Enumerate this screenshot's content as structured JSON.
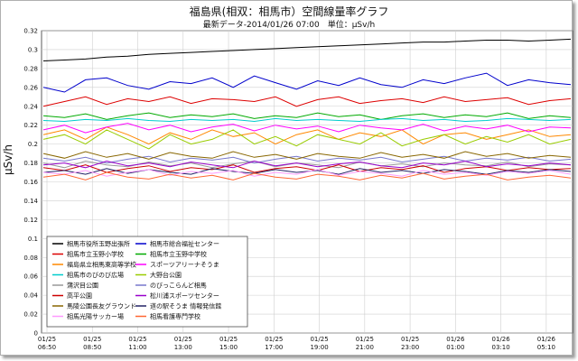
{
  "chart_data": {
    "type": "line",
    "title": "福島県(相双：相馬市）空間線量率グラフ",
    "subtitle": "最新データ-2014/01/26 07:00　単位：μSv/h",
    "ylabel": "μSv/h",
    "ylim": [
      0,
      0.32
    ],
    "yticks": [
      "0",
      "0.02",
      "0.04",
      "0.06",
      "0.08",
      "0.1",
      "0.12",
      "0.14",
      "0.16",
      "0.18",
      "0.2",
      "0.22",
      "0.24",
      "0.26",
      "0.28",
      "0.3",
      "0.32"
    ],
    "xticks": [
      {
        "date": "01/25",
        "time": "06:50"
      },
      {
        "date": "01/25",
        "time": "08:50"
      },
      {
        "date": "01/25",
        "time": "11:00"
      },
      {
        "date": "01/25",
        "time": "13:00"
      },
      {
        "date": "01/25",
        "time": "15:00"
      },
      {
        "date": "01/25",
        "time": "17:00"
      },
      {
        "date": "01/25",
        "time": "19:00"
      },
      {
        "date": "01/25",
        "time": "21:00"
      },
      {
        "date": "01/25",
        "time": "23:00"
      },
      {
        "date": "01/26",
        "time": "01:00"
      },
      {
        "date": "01/26",
        "time": "03:10"
      },
      {
        "date": "01/26",
        "time": "05:10"
      }
    ],
    "grid": true,
    "legend_position": "bottom-left",
    "series": [
      {
        "name": "相馬市役所玉野出張所",
        "color": "#000000",
        "values": [
          0.288,
          0.289,
          0.29,
          0.292,
          0.293,
          0.295,
          0.296,
          0.297,
          0.298,
          0.299,
          0.3,
          0.301,
          0.302,
          0.303,
          0.304,
          0.305,
          0.306,
          0.307,
          0.308,
          0.308,
          0.309,
          0.31,
          0.31,
          0.309,
          0.31,
          0.311
        ]
      },
      {
        "name": "相馬市総合福祉センター",
        "color": "#0000cc",
        "values": [
          0.26,
          0.255,
          0.268,
          0.27,
          0.262,
          0.258,
          0.266,
          0.264,
          0.27,
          0.26,
          0.272,
          0.265,
          0.258,
          0.267,
          0.262,
          0.27,
          0.263,
          0.26,
          0.268,
          0.264,
          0.27,
          0.275,
          0.262,
          0.268,
          0.265,
          0.263
        ]
      },
      {
        "name": "相馬市立玉野小学校",
        "color": "#dd0000",
        "values": [
          0.24,
          0.245,
          0.25,
          0.242,
          0.248,
          0.245,
          0.25,
          0.243,
          0.248,
          0.247,
          0.245,
          0.25,
          0.24,
          0.247,
          0.25,
          0.243,
          0.246,
          0.248,
          0.244,
          0.25,
          0.245,
          0.247,
          0.249,
          0.242,
          0.246,
          0.248
        ]
      },
      {
        "name": "相馬市立玉野中学校",
        "color": "#00aa00",
        "values": [
          0.23,
          0.228,
          0.232,
          0.226,
          0.23,
          0.233,
          0.228,
          0.231,
          0.229,
          0.232,
          0.227,
          0.23,
          0.228,
          0.233,
          0.229,
          0.231,
          0.226,
          0.23,
          0.232,
          0.228,
          0.231,
          0.229,
          0.233,
          0.227,
          0.23,
          0.228
        ]
      },
      {
        "name": "福島県立相馬東高等学校",
        "color": "#ff8800",
        "values": [
          0.21,
          0.215,
          0.205,
          0.218,
          0.21,
          0.2,
          0.212,
          0.205,
          0.215,
          0.208,
          0.212,
          0.2,
          0.21,
          0.215,
          0.205,
          0.212,
          0.208,
          0.215,
          0.2,
          0.21,
          0.212,
          0.205,
          0.21,
          0.215,
          0.208,
          0.21
        ]
      },
      {
        "name": "スポーツアリーナそうま",
        "color": "#ff00ff",
        "values": [
          0.215,
          0.22,
          0.212,
          0.218,
          0.222,
          0.215,
          0.22,
          0.213,
          0.218,
          0.221,
          0.214,
          0.22,
          0.216,
          0.219,
          0.213,
          0.22,
          0.217,
          0.215,
          0.221,
          0.214,
          0.219,
          0.216,
          0.22,
          0.213,
          0.218,
          0.217
        ]
      },
      {
        "name": "相馬市のびのび広場",
        "color": "#00cccc",
        "values": [
          0.225,
          0.224,
          0.226,
          0.225,
          0.227,
          0.225,
          0.224,
          0.226,
          0.225,
          0.226,
          0.224,
          0.227,
          0.225,
          0.226,
          0.225,
          0.224,
          0.226,
          0.227,
          0.225,
          0.226,
          0.224,
          0.225,
          0.227,
          0.226,
          0.225,
          0.226
        ]
      },
      {
        "name": "大野台公園",
        "color": "#99cc00",
        "values": [
          0.205,
          0.21,
          0.2,
          0.215,
          0.205,
          0.195,
          0.21,
          0.2,
          0.205,
          0.215,
          0.2,
          0.208,
          0.198,
          0.21,
          0.205,
          0.2,
          0.212,
          0.198,
          0.205,
          0.21,
          0.2,
          0.208,
          0.202,
          0.21,
          0.2,
          0.205
        ]
      },
      {
        "name": "蒲沢目公園",
        "color": "#999999",
        "values": [
          0.18,
          0.175,
          0.182,
          0.178,
          0.176,
          0.181,
          0.177,
          0.18,
          0.175,
          0.179,
          0.182,
          0.176,
          0.18,
          0.178,
          0.175,
          0.181,
          0.177,
          0.179,
          0.176,
          0.18,
          0.178,
          0.177,
          0.181,
          0.176,
          0.179,
          0.178
        ]
      },
      {
        "name": "のびっこらんど相馬",
        "color": "#7777cc",
        "values": [
          0.185,
          0.182,
          0.186,
          0.18,
          0.184,
          0.187,
          0.181,
          0.185,
          0.183,
          0.186,
          0.18,
          0.184,
          0.187,
          0.182,
          0.185,
          0.183,
          0.186,
          0.181,
          0.184,
          0.187,
          0.182,
          0.185,
          0.183,
          0.186,
          0.182,
          0.184
        ]
      },
      {
        "name": "高平公園",
        "color": "#cc0000",
        "values": [
          0.175,
          0.172,
          0.178,
          0.17,
          0.174,
          0.177,
          0.171,
          0.175,
          0.173,
          0.178,
          0.17,
          0.174,
          0.176,
          0.172,
          0.178,
          0.171,
          0.175,
          0.173,
          0.177,
          0.17,
          0.174,
          0.176,
          0.172,
          0.175,
          0.173,
          0.174
        ]
      },
      {
        "name": "松川浦スポーツセンター",
        "color": "#9900cc",
        "values": [
          0.178,
          0.18,
          0.175,
          0.182,
          0.177,
          0.18,
          0.176,
          0.181,
          0.178,
          0.175,
          0.182,
          0.177,
          0.18,
          0.176,
          0.179,
          0.181,
          0.177,
          0.175,
          0.18,
          0.178,
          0.182,
          0.176,
          0.179,
          0.177,
          0.18,
          0.178
        ]
      },
      {
        "name": "馬陵公園長友グラウンド",
        "color": "#886600",
        "values": [
          0.19,
          0.185,
          0.192,
          0.186,
          0.19,
          0.184,
          0.191,
          0.187,
          0.185,
          0.192,
          0.186,
          0.189,
          0.184,
          0.19,
          0.187,
          0.185,
          0.191,
          0.186,
          0.189,
          0.185,
          0.192,
          0.187,
          0.19,
          0.185,
          0.188,
          0.186
        ]
      },
      {
        "name": "道の駅そうま 情報発信館",
        "color": "#222266",
        "values": [
          0.17,
          0.172,
          0.168,
          0.174,
          0.169,
          0.173,
          0.17,
          0.168,
          0.174,
          0.171,
          0.169,
          0.173,
          0.17,
          0.172,
          0.168,
          0.174,
          0.17,
          0.172,
          0.169,
          0.173,
          0.171,
          0.168,
          0.172,
          0.17,
          0.173,
          0.171
        ]
      },
      {
        "name": "相馬光陽サッカー場",
        "color": "#ff99ff",
        "values": [
          0.17,
          0.168,
          0.172,
          0.166,
          0.17,
          0.173,
          0.167,
          0.171,
          0.169,
          0.172,
          0.166,
          0.17,
          0.168,
          0.173,
          0.167,
          0.171,
          0.169,
          0.166,
          0.172,
          0.168,
          0.17,
          0.167,
          0.171,
          0.169,
          0.172,
          0.168
        ]
      },
      {
        "name": "相馬看護専門学校",
        "color": "#ff6633",
        "values": [
          0.165,
          0.168,
          0.162,
          0.17,
          0.165,
          0.163,
          0.168,
          0.164,
          0.167,
          0.162,
          0.169,
          0.165,
          0.163,
          0.168,
          0.166,
          0.162,
          0.167,
          0.164,
          0.169,
          0.163,
          0.166,
          0.168,
          0.162,
          0.165,
          0.167,
          0.164
        ]
      }
    ]
  }
}
